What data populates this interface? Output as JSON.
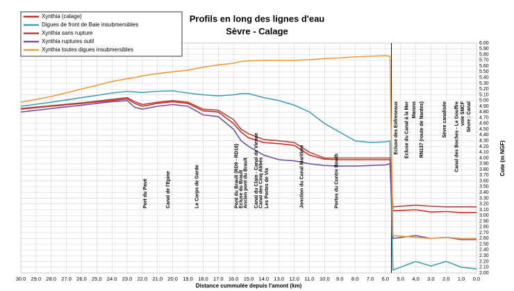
{
  "chart_data": {
    "type": "line",
    "title": "Profils en long des lignes d'eau",
    "subtitle": "Sèvre - Calage",
    "x_label": "Distance cummulée depuis l'amont (km)",
    "y_label": "Cote (m NGF)",
    "grid": true,
    "legend": "top-left",
    "x": [
      30,
      28,
      26,
      24,
      23,
      22.5,
      22,
      21,
      20,
      19,
      18,
      17,
      16,
      15.5,
      15,
      14,
      13,
      12,
      11,
      10,
      9,
      8,
      7,
      6,
      5.7,
      5.5,
      4,
      3,
      2,
      1,
      0
    ],
    "series": [
      {
        "name": "Xynthia (calage)",
        "color": "#d42a1e",
        "values": [
          4.85,
          4.9,
          4.95,
          5.0,
          5.03,
          4.95,
          4.9,
          4.95,
          4.98,
          4.95,
          4.82,
          4.8,
          4.6,
          4.45,
          4.35,
          4.27,
          4.25,
          4.22,
          4.05,
          3.98,
          3.97,
          3.97,
          3.97,
          3.97,
          3.97,
          3.08,
          3.1,
          3.06,
          3.07,
          3.05,
          3.05
        ]
      },
      {
        "name": "Digues de front de Baie insubmersibles",
        "color": "#3fa0b4",
        "values": [
          4.9,
          4.97,
          5.05,
          5.13,
          5.16,
          5.15,
          5.14,
          5.16,
          5.17,
          5.13,
          5.1,
          5.08,
          5.1,
          5.12,
          5.12,
          5.05,
          5.0,
          4.92,
          4.8,
          4.6,
          4.45,
          4.3,
          4.27,
          4.28,
          4.3,
          2.05,
          2.2,
          2.12,
          2.2,
          2.1,
          2.07
        ]
      },
      {
        "name": "Xynthia sans rupture",
        "color": "#a6463f",
        "values": [
          4.86,
          4.91,
          4.96,
          5.02,
          5.05,
          4.98,
          4.93,
          4.97,
          5.0,
          4.97,
          4.85,
          4.83,
          4.67,
          4.5,
          4.42,
          4.32,
          4.3,
          4.27,
          4.1,
          4.0,
          4.0,
          4.0,
          4.0,
          4.0,
          4.0,
          3.15,
          3.18,
          3.16,
          3.15,
          3.15,
          3.15
        ]
      },
      {
        "name": "Xynthia ruptures outil",
        "color": "#7050a0",
        "values": [
          4.8,
          4.86,
          4.92,
          4.98,
          5.0,
          4.88,
          4.85,
          4.9,
          4.93,
          4.9,
          4.75,
          4.72,
          4.5,
          4.3,
          4.2,
          4.05,
          3.97,
          3.95,
          3.9,
          3.87,
          3.86,
          3.86,
          3.87,
          3.88,
          3.9,
          2.6,
          2.65,
          2.6,
          2.62,
          2.58,
          2.58
        ]
      },
      {
        "name": "Xynthia toutes digues insubmersibles",
        "color": "#f09a3e",
        "values": [
          4.97,
          5.07,
          5.2,
          5.33,
          5.38,
          5.4,
          5.43,
          5.47,
          5.5,
          5.53,
          5.58,
          5.62,
          5.65,
          5.68,
          5.69,
          5.7,
          5.7,
          5.7,
          5.71,
          5.73,
          5.74,
          5.76,
          5.77,
          5.78,
          5.77,
          2.65,
          2.62,
          2.6,
          2.62,
          2.6,
          2.6
        ]
      }
    ],
    "xlim": [
      30,
      0
    ],
    "ylim": [
      2,
      6
    ],
    "xticks": [
      {
        "value": 30,
        "label": "30.0"
      },
      {
        "value": 29,
        "label": "29.0"
      },
      {
        "value": 28,
        "label": "28.0"
      },
      {
        "value": 27,
        "label": "27.0"
      },
      {
        "value": 26,
        "label": "26.0"
      },
      {
        "value": 25,
        "label": "25.0"
      },
      {
        "value": 24,
        "label": "24.0"
      },
      {
        "value": 23,
        "label": "23.0"
      },
      {
        "value": 22,
        "label": "22.0"
      },
      {
        "value": 21,
        "label": "21.0"
      },
      {
        "value": 20,
        "label": "20.0"
      },
      {
        "value": 19,
        "label": "19.0"
      },
      {
        "value": 18,
        "label": "18.0"
      },
      {
        "value": 17,
        "label": "17.0"
      },
      {
        "value": 16,
        "label": "16.0"
      },
      {
        "value": 15,
        "label": "15.0"
      },
      {
        "value": 14,
        "label": "14.0"
      },
      {
        "value": 13,
        "label": "13.0"
      },
      {
        "value": 12,
        "label": "12.0"
      },
      {
        "value": 11,
        "label": "11.0"
      },
      {
        "value": 10,
        "label": "10.0"
      },
      {
        "value": 9,
        "label": "9.0"
      },
      {
        "value": 8,
        "label": "8.0"
      },
      {
        "value": 7,
        "label": "7.0"
      },
      {
        "value": 6,
        "label": "6.0"
      },
      {
        "value": 5,
        "label": "5.0"
      },
      {
        "value": 4,
        "label": "4.0"
      },
      {
        "value": 3,
        "label": "3.0"
      },
      {
        "value": 2,
        "label": "2.0"
      },
      {
        "value": 1,
        "label": "1.0"
      },
      {
        "value": 0,
        "label": "0.0"
      }
    ],
    "yticks": [
      {
        "value": 2.0,
        "label": "2.00"
      },
      {
        "value": 2.1,
        "label": "2.10"
      },
      {
        "value": 2.2,
        "label": "2.20"
      },
      {
        "value": 2.3,
        "label": "2.30"
      },
      {
        "value": 2.4,
        "label": "2.40"
      },
      {
        "value": 2.5,
        "label": "2.50"
      },
      {
        "value": 2.6,
        "label": "2.60"
      },
      {
        "value": 2.7,
        "label": "2.70"
      },
      {
        "value": 2.8,
        "label": "2.80"
      },
      {
        "value": 2.9,
        "label": "2.90"
      },
      {
        "value": 3.0,
        "label": "3.00"
      },
      {
        "value": 3.1,
        "label": "3.10"
      },
      {
        "value": 3.2,
        "label": "3.20"
      },
      {
        "value": 3.3,
        "label": "3.30"
      },
      {
        "value": 3.4,
        "label": "3.40"
      },
      {
        "value": 3.5,
        "label": "3.50"
      },
      {
        "value": 3.6,
        "label": "3.60"
      },
      {
        "value": 3.7,
        "label": "3.70"
      },
      {
        "value": 3.8,
        "label": "3.80"
      },
      {
        "value": 3.9,
        "label": "3.90"
      },
      {
        "value": 4.0,
        "label": "4.00"
      },
      {
        "value": 4.1,
        "label": "4.10"
      },
      {
        "value": 4.2,
        "label": "4.20"
      },
      {
        "value": 4.3,
        "label": "4.30"
      },
      {
        "value": 4.4,
        "label": "4.40"
      },
      {
        "value": 4.5,
        "label": "4.50"
      },
      {
        "value": 4.6,
        "label": "4.60"
      },
      {
        "value": 4.7,
        "label": "4.70"
      },
      {
        "value": 4.8,
        "label": "4.80"
      },
      {
        "value": 4.9,
        "label": "4.90"
      },
      {
        "value": 5.0,
        "label": "5.00"
      },
      {
        "value": 5.1,
        "label": "5.10"
      },
      {
        "value": 5.2,
        "label": "5.20"
      },
      {
        "value": 5.3,
        "label": "5.30"
      },
      {
        "value": 5.4,
        "label": "5.40"
      },
      {
        "value": 5.5,
        "label": "5.50"
      },
      {
        "value": 5.6,
        "label": "5.60"
      },
      {
        "value": 5.7,
        "label": "5.70"
      },
      {
        "value": 5.8,
        "label": "5.80"
      },
      {
        "value": 5.9,
        "label": "5.90"
      },
      {
        "value": 6.0,
        "label": "6.00"
      }
    ],
    "annotations": [
      {
        "x": 21.8,
        "text": "Port du Pavé"
      },
      {
        "x": 20.3,
        "text": "Canal de l'Epine"
      },
      {
        "x": 18.4,
        "text": "Le Corps de Garde"
      },
      {
        "x": 15.8,
        "text": "Pont du Brault (RD9 - RD10)"
      },
      {
        "x": 15.5,
        "text": "Ecluse du Brault"
      },
      {
        "x": 15.2,
        "text": "Ancien pont du Brault"
      },
      {
        "x": 14.5,
        "text": "Canal du Clain - Canal de Vienne"
      },
      {
        "x": 14.2,
        "text": "Canal des Cinq Abbés"
      },
      {
        "x": 13.8,
        "text": "Les Portes de Vix"
      },
      {
        "x": 11.5,
        "text": "Jonction du Canal Maritime"
      },
      {
        "x": 9.2,
        "text": "Portes du Contre Booth"
      },
      {
        "x": 5.3,
        "text": "Ecluse des Enfreneaux"
      },
      {
        "x": 4.6,
        "text": "Ecluse du Canal à la Mer"
      },
      {
        "x": 4.1,
        "text": "Marans"
      },
      {
        "x": 3.6,
        "text": "RN137 (route de Nantes)"
      },
      {
        "x": 2.1,
        "text": "Sèvre canalisée"
      },
      {
        "x": 1.3,
        "text": "Canal des Boches - Le Gouffre"
      },
      {
        "x": 0.9,
        "text": "voie SNCF"
      },
      {
        "x": 0.5,
        "text": "Sèvre : Canal"
      }
    ]
  }
}
